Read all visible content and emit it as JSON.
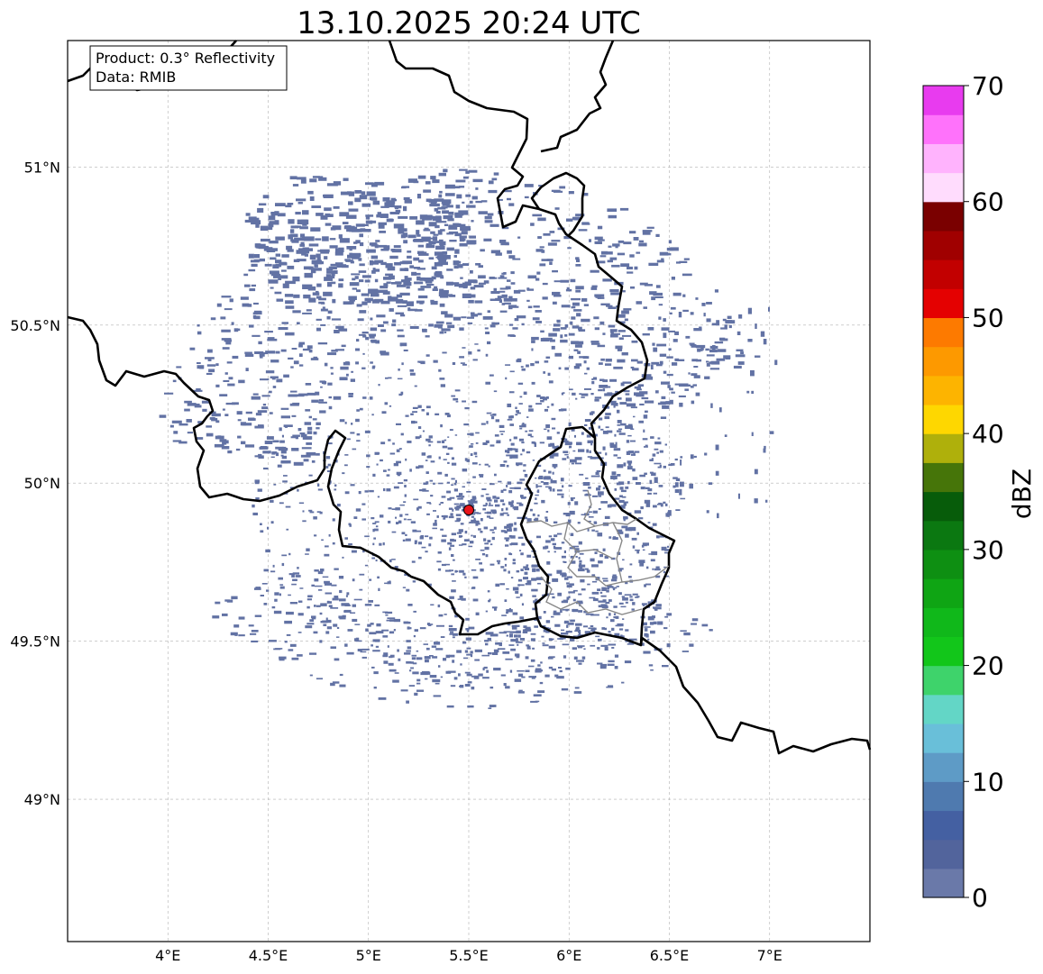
{
  "map": {
    "title": "13.10.2025 20:24 UTC",
    "info_lines": [
      "Product: 0.3° Reflectivity",
      "Data: RMIB"
    ],
    "radar_site": {
      "lon": 5.5,
      "lat": 49.915,
      "color": "#e8141a"
    },
    "extent": {
      "lon_min": 3.5,
      "lon_max": 7.5,
      "lat_min": 48.55,
      "lat_max": 51.4
    },
    "lon_ticks": [
      {
        "value": 4.0,
        "label": "4°E"
      },
      {
        "value": 4.5,
        "label": "4.5°E"
      },
      {
        "value": 5.0,
        "label": "5°E"
      },
      {
        "value": 5.5,
        "label": "5.5°E"
      },
      {
        "value": 6.0,
        "label": "6°E"
      },
      {
        "value": 6.5,
        "label": "6.5°E"
      },
      {
        "value": 7.0,
        "label": "7°E"
      }
    ],
    "lat_ticks": [
      {
        "value": 49.0,
        "label": "49°N"
      },
      {
        "value": 49.5,
        "label": "49.5°N"
      },
      {
        "value": 50.0,
        "label": "50°N"
      },
      {
        "value": 50.5,
        "label": "50.5°N"
      },
      {
        "value": 51.0,
        "label": "51°N"
      }
    ],
    "echo_color": "#6272a4"
  },
  "colorbar": {
    "label": "dBZ",
    "min": 0,
    "max": 70,
    "ticks": [
      "0",
      "10",
      "20",
      "30",
      "40",
      "50",
      "60",
      "70"
    ],
    "colors": [
      "#6a79a9",
      "#52649c",
      "#4460a2",
      "#4f7aaf",
      "#5e9bc6",
      "#69bfd9",
      "#63d6c6",
      "#3ed36b",
      "#12c61a",
      "#10b81a",
      "#0fa514",
      "#0e8f12",
      "#0b7811",
      "#075c0a",
      "#467509",
      "#afb00b",
      "#fed700",
      "#fdb400",
      "#fd9900",
      "#fd7a00",
      "#e40101",
      "#c20000",
      "#a00000",
      "#7a0000",
      "#ffdcfd",
      "#ffb3fd",
      "#ff72fb",
      "#e83bef"
    ]
  }
}
